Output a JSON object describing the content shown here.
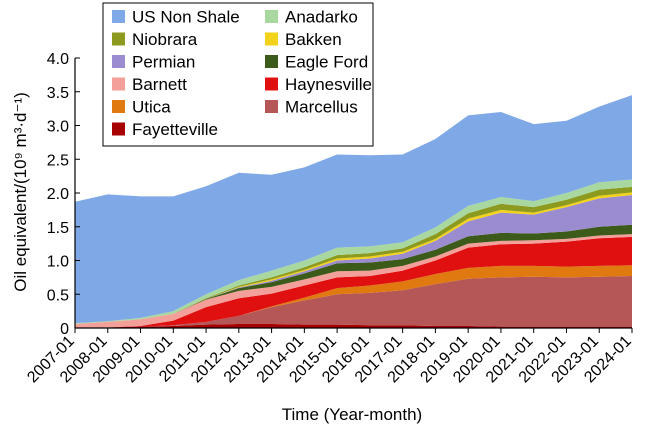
{
  "chart_data": {
    "type": "area",
    "stacked": true,
    "xlabel": "Time (Year-month)",
    "ylabel": "Oil equivalent/(10⁹ m³·d⁻¹)",
    "ylim": [
      0,
      4.0
    ],
    "yticks": [
      "0",
      "0.5",
      "1.0",
      "1.5",
      "2.0",
      "2.5",
      "3.0",
      "3.5",
      "4.0"
    ],
    "xlim": [
      "2007-01",
      "2024-01"
    ],
    "xticks": [
      "2007-01",
      "2008-01",
      "2009-01",
      "2010-01",
      "2011-01",
      "2012-01",
      "2013-01",
      "2014-01",
      "2015-01",
      "2016-01",
      "2017-01",
      "2018-01",
      "2019-01",
      "2020-01",
      "2021-01",
      "2022-01",
      "2023-01",
      "2024-01"
    ],
    "x": [
      "2007-01",
      "2008-01",
      "2009-01",
      "2010-01",
      "2011-01",
      "2012-01",
      "2013-01",
      "2014-01",
      "2015-01",
      "2016-01",
      "2017-01",
      "2018-01",
      "2019-01",
      "2020-01",
      "2021-01",
      "2022-01",
      "2023-01",
      "2024-01"
    ],
    "legend_position": "top-left",
    "series": [
      {
        "name": "Fayetteville",
        "color": "#a60000",
        "values": [
          0.0,
          0.01,
          0.02,
          0.03,
          0.05,
          0.06,
          0.06,
          0.05,
          0.05,
          0.04,
          0.04,
          0.03,
          0.03,
          0.02,
          0.02,
          0.02,
          0.02,
          0.02
        ]
      },
      {
        "name": "Marcellus",
        "color": "#b65757",
        "values": [
          0.0,
          0.0,
          0.0,
          0.01,
          0.04,
          0.12,
          0.25,
          0.36,
          0.45,
          0.48,
          0.52,
          0.62,
          0.7,
          0.73,
          0.74,
          0.73,
          0.74,
          0.75
        ]
      },
      {
        "name": "Utica",
        "color": "#e07a10",
        "values": [
          0.0,
          0.0,
          0.0,
          0.0,
          0.0,
          0.0,
          0.01,
          0.04,
          0.09,
          0.11,
          0.13,
          0.15,
          0.16,
          0.17,
          0.16,
          0.16,
          0.16,
          0.16
        ]
      },
      {
        "name": "Haynesville",
        "color": "#e01010",
        "values": [
          0.0,
          0.0,
          0.01,
          0.07,
          0.22,
          0.26,
          0.19,
          0.18,
          0.16,
          0.14,
          0.16,
          0.2,
          0.3,
          0.32,
          0.33,
          0.37,
          0.41,
          0.42
        ]
      },
      {
        "name": "Barnett",
        "color": "#f4a09a",
        "values": [
          0.06,
          0.08,
          0.1,
          0.1,
          0.11,
          0.11,
          0.1,
          0.09,
          0.09,
          0.08,
          0.07,
          0.06,
          0.06,
          0.05,
          0.05,
          0.04,
          0.04,
          0.04
        ]
      },
      {
        "name": "Eagle Ford",
        "color": "#3c5a1a",
        "values": [
          0.0,
          0.0,
          0.0,
          0.0,
          0.01,
          0.04,
          0.07,
          0.09,
          0.12,
          0.12,
          0.1,
          0.1,
          0.11,
          0.12,
          0.1,
          0.11,
          0.13,
          0.14
        ]
      },
      {
        "name": "Permian",
        "color": "#9b8cd0",
        "values": [
          0.0,
          0.0,
          0.0,
          0.0,
          0.0,
          0.01,
          0.02,
          0.03,
          0.04,
          0.06,
          0.08,
          0.13,
          0.22,
          0.3,
          0.28,
          0.36,
          0.42,
          0.44
        ]
      },
      {
        "name": "Bakken",
        "color": "#f2d21a",
        "values": [
          0.0,
          0.0,
          0.0,
          0.0,
          0.0,
          0.01,
          0.02,
          0.02,
          0.03,
          0.03,
          0.03,
          0.03,
          0.04,
          0.04,
          0.03,
          0.03,
          0.04,
          0.04
        ]
      },
      {
        "name": "Niobrara",
        "color": "#8c9a20",
        "values": [
          0.0,
          0.0,
          0.0,
          0.0,
          0.01,
          0.02,
          0.03,
          0.04,
          0.05,
          0.05,
          0.05,
          0.07,
          0.08,
          0.09,
          0.08,
          0.08,
          0.09,
          0.08
        ]
      },
      {
        "name": "Anadarko",
        "color": "#a8d8a0",
        "values": [
          0.01,
          0.01,
          0.02,
          0.04,
          0.06,
          0.08,
          0.1,
          0.1,
          0.11,
          0.1,
          0.09,
          0.1,
          0.11,
          0.1,
          0.09,
          0.1,
          0.11,
          0.11
        ]
      },
      {
        "name": "US Non Shale",
        "color": "#7ea8e6",
        "values": [
          1.8,
          1.88,
          1.8,
          1.7,
          1.6,
          1.59,
          1.42,
          1.38,
          1.38,
          1.35,
          1.3,
          1.31,
          1.34,
          1.26,
          1.14,
          1.07,
          1.12,
          1.25
        ]
      }
    ],
    "legend_order": [
      "US Non Shale",
      "Anadarko",
      "Niobrara",
      "Bakken",
      "Permian",
      "Eagle Ford",
      "Barnett",
      "Haynesville",
      "Utica",
      "Marcellus",
      "Fayetteville"
    ]
  }
}
